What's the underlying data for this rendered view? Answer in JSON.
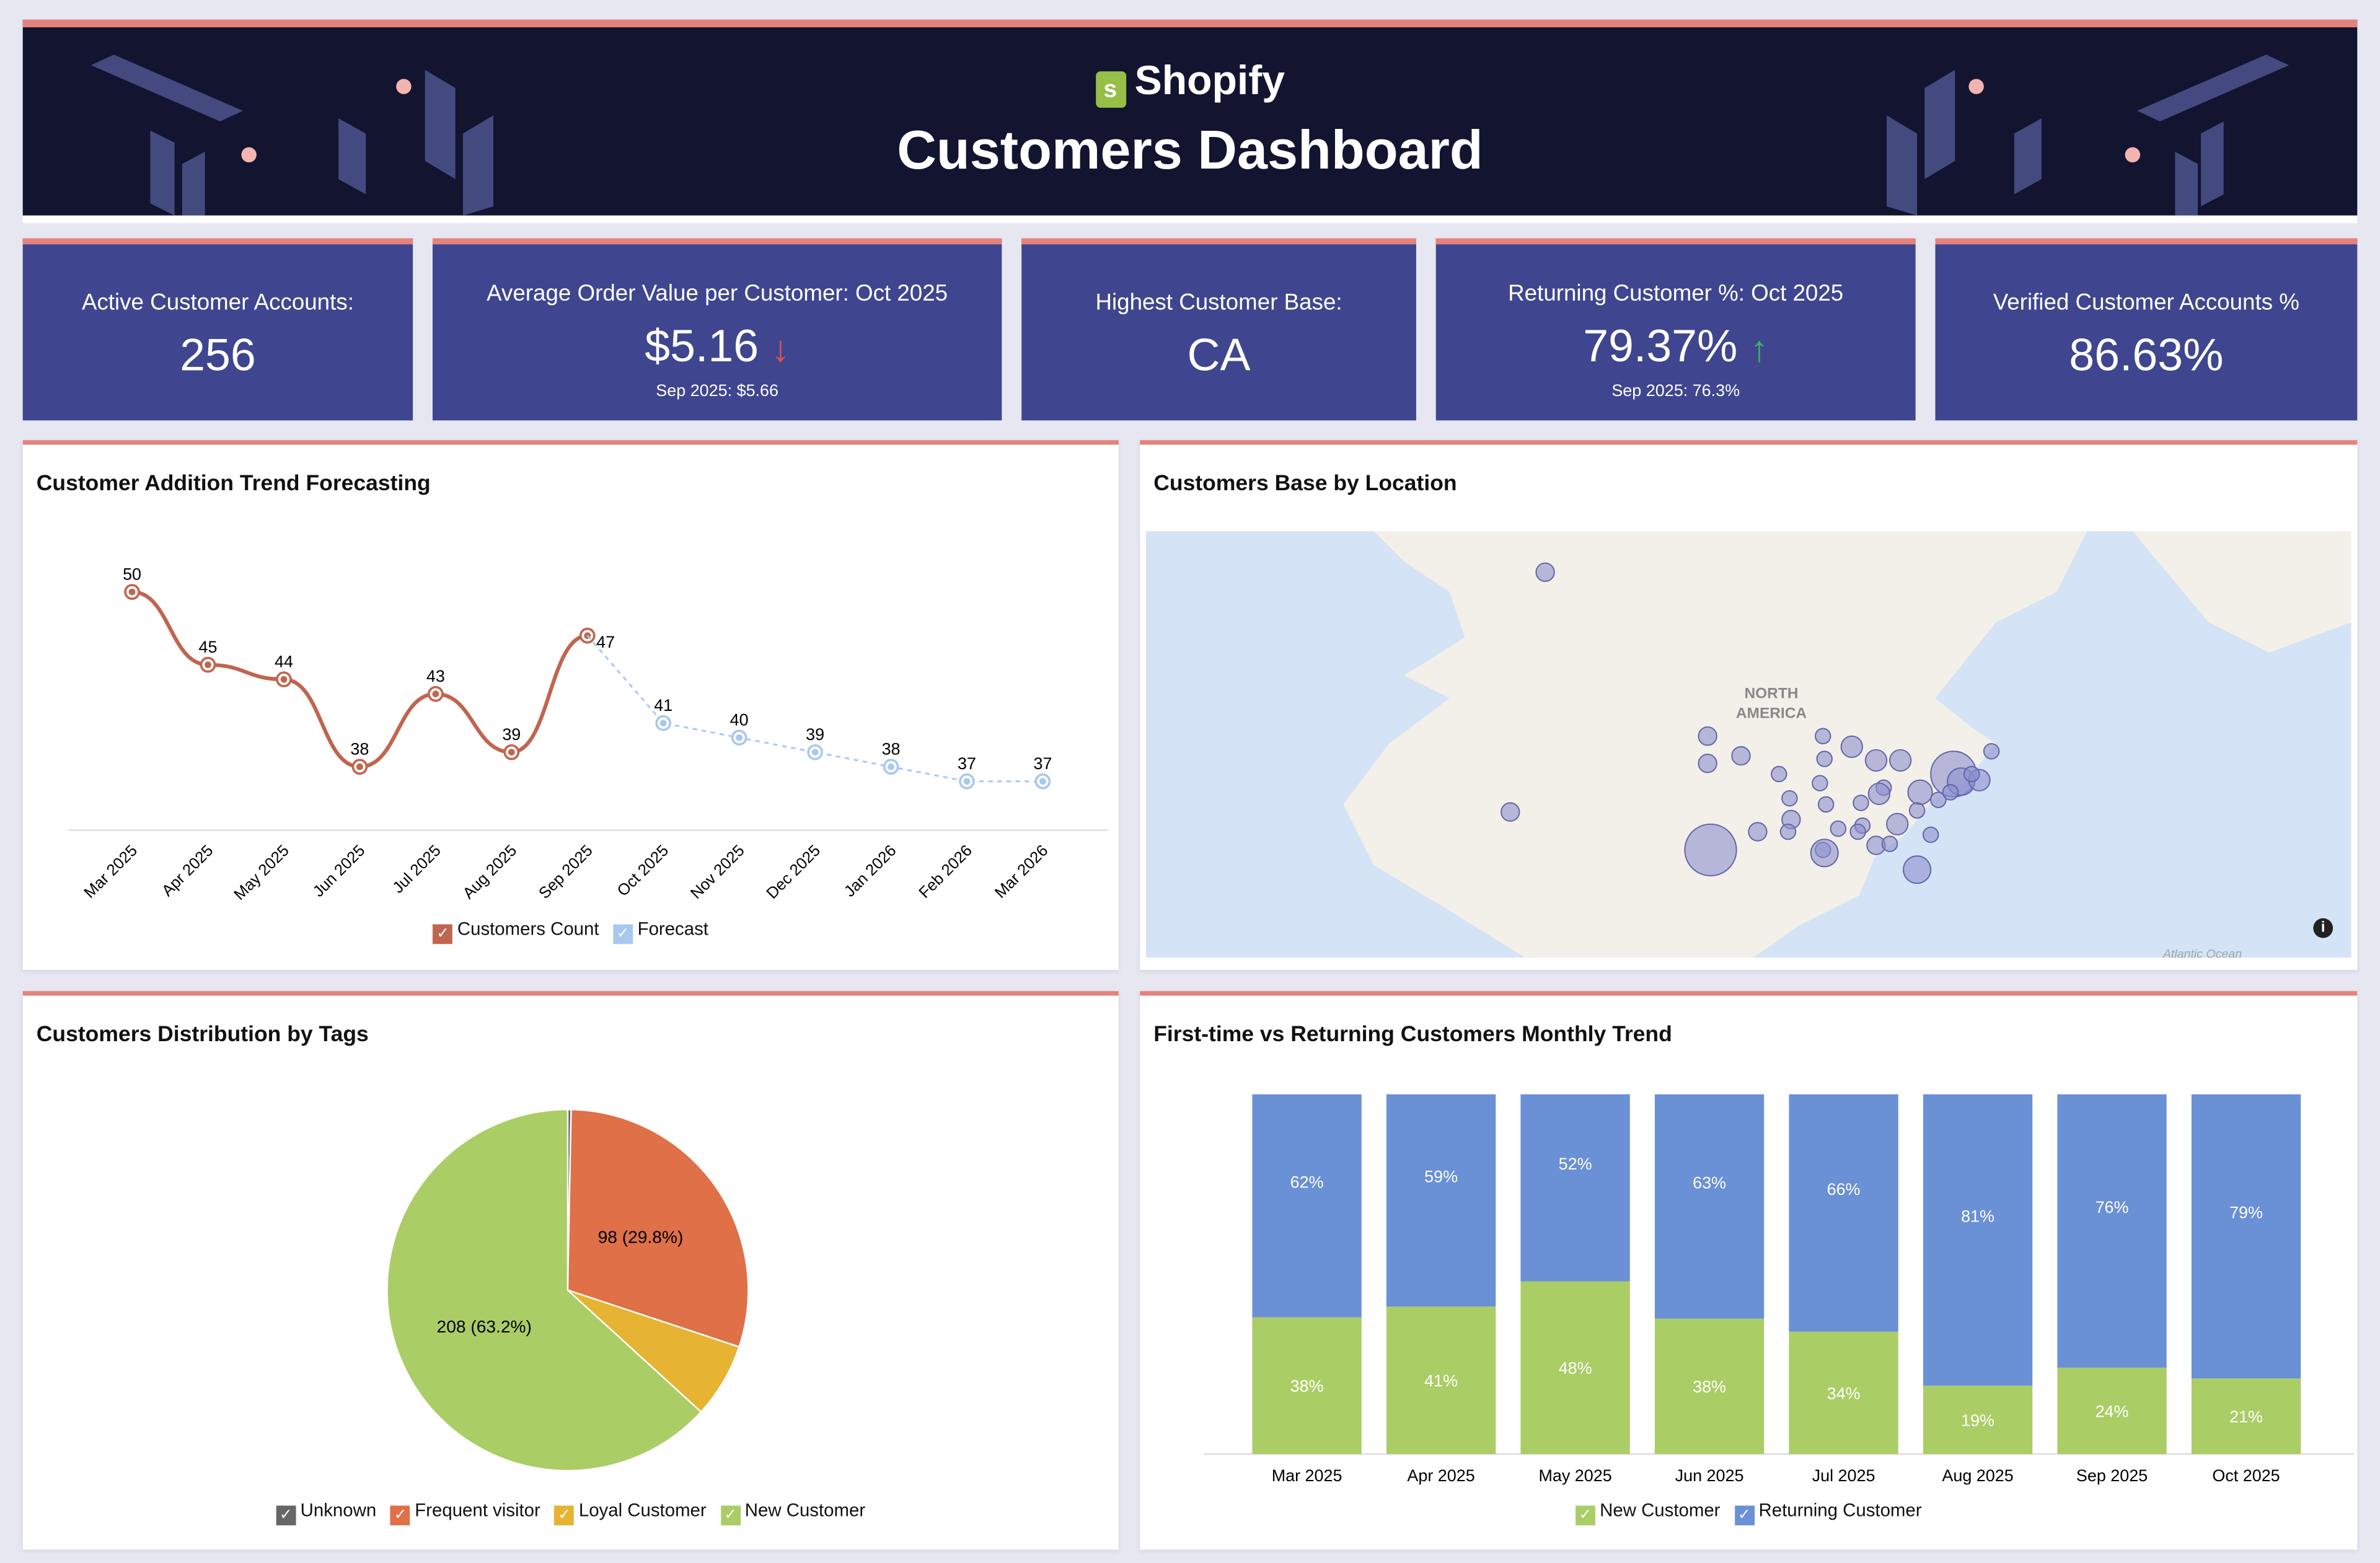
{
  "header": {
    "brand": "Shopify",
    "title": "Customers Dashboard",
    "colors": {
      "background": "#121430",
      "accent": "#e5827c"
    }
  },
  "kpis": [
    {
      "label": "Active Customer Accounts:",
      "value": "256"
    },
    {
      "label": "Average Order Value per Customer: Oct 2025",
      "value": "$5.16",
      "trend": "down",
      "trend_icon": "↓",
      "comparison": "Sep 2025: $5.66"
    },
    {
      "label": "Highest Customer Base:",
      "value": "CA"
    },
    {
      "label": "Returning Customer %: Oct 2025",
      "value": "79.37%",
      "trend": "up",
      "trend_icon": "↑",
      "comparison": "Sep 2025: 76.3%"
    },
    {
      "label": "Verified Customer Accounts %",
      "value": "86.63%"
    }
  ],
  "panels": {
    "trend": {
      "title": "Customer Addition Trend Forecasting"
    },
    "map": {
      "title": "Customers Base by Location",
      "continent_label_1": "NORTH",
      "continent_label_2": "AMERICA",
      "ocean_label": "Atlantic Ocean",
      "info_icon": "info-icon"
    },
    "tags": {
      "title": "Customers Distribution by Tags"
    },
    "monthly": {
      "title": "First-time vs Returning Customers Monthly Trend"
    }
  },
  "chart_data": [
    {
      "type": "line",
      "categories": [
        "Mar 2025",
        "Apr 2025",
        "May 2025",
        "Jun 2025",
        "Jul 2025",
        "Aug 2025",
        "Sep 2025",
        "Oct 2025",
        "Nov 2025",
        "Dec 2025",
        "Jan 2026",
        "Feb 2026",
        "Mar 2026"
      ],
      "series": [
        {
          "name": "Customers Count",
          "color": "#c0654f",
          "values": [
            50,
            45,
            44,
            38,
            43,
            39,
            47,
            null,
            null,
            null,
            null,
            null,
            null
          ]
        },
        {
          "name": "Forecast",
          "color": "#a9c8f0",
          "values": [
            null,
            null,
            null,
            null,
            null,
            null,
            47,
            41,
            40,
            39,
            38,
            37,
            37
          ]
        }
      ],
      "legend": "bottom",
      "grid": false
    },
    {
      "type": "pie",
      "slices": [
        {
          "name": "Unknown",
          "value": 1,
          "color": "#666666"
        },
        {
          "name": "Frequent visitor",
          "value": 98,
          "label": "98 (29.8%)",
          "color": "#df7048"
        },
        {
          "name": "Loyal Customer",
          "value": 22,
          "color": "#e6b333"
        },
        {
          "name": "New Customer",
          "value": 208,
          "label": "208 (63.2%)",
          "color": "#abcd66"
        }
      ],
      "legend": "bottom"
    },
    {
      "type": "bar",
      "stacked": true,
      "categories": [
        "Mar 2025",
        "Apr 2025",
        "May 2025",
        "Jun 2025",
        "Jul 2025",
        "Aug 2025",
        "Sep 2025",
        "Oct 2025"
      ],
      "series": [
        {
          "name": "New Customer",
          "color": "#abcd66",
          "values": [
            38,
            41,
            48,
            38,
            34,
            19,
            24,
            21
          ],
          "labels": [
            "38%",
            "41%",
            "48%",
            "38%",
            "34%",
            "19%",
            "24%",
            "21%"
          ]
        },
        {
          "name": "Returning Customer",
          "color": "#6a90d6",
          "values": [
            62,
            59,
            52,
            63,
            66,
            81,
            76,
            79
          ],
          "labels": [
            "62%",
            "59%",
            "52%",
            "63%",
            "66%",
            "81%",
            "76%",
            "79%"
          ]
        }
      ],
      "ylim": [
        0,
        100
      ],
      "legend": "bottom"
    }
  ]
}
